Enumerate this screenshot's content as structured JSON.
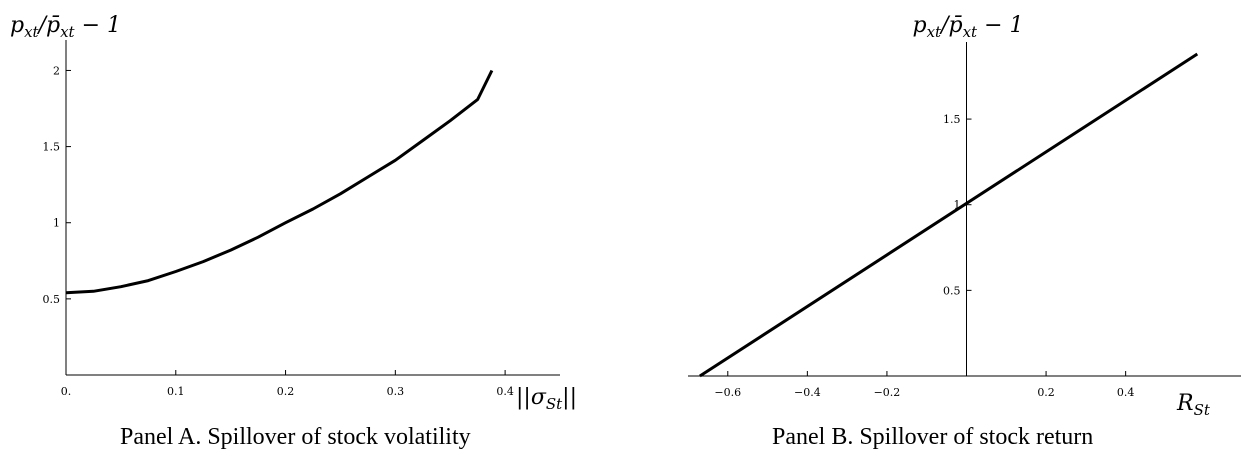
{
  "chart_data": [
    {
      "type": "line",
      "caption": "Panel A. Spillover of stock volatility",
      "xlabel": "||σ_St||",
      "ylabel": "p_xt/p̄_xt − 1",
      "xlim": [
        0,
        0.45
      ],
      "ylim": [
        0,
        2.2
      ],
      "x_ticks": [
        {
          "value": 0,
          "label": "0."
        },
        {
          "value": 0.1,
          "label": "0.1"
        },
        {
          "value": 0.2,
          "label": "0.2"
        },
        {
          "value": 0.3,
          "label": "0.3"
        },
        {
          "value": 0.4,
          "label": "0.4"
        }
      ],
      "y_ticks": [
        {
          "value": 0.5,
          "label": "0.5"
        },
        {
          "value": 1,
          "label": "1"
        },
        {
          "value": 1.5,
          "label": "1.5"
        },
        {
          "value": 2,
          "label": "2"
        }
      ],
      "grid": false,
      "series": [
        {
          "color": "#000000",
          "x": [
            0,
            0.025,
            0.05,
            0.075,
            0.1,
            0.125,
            0.15,
            0.175,
            0.2,
            0.225,
            0.25,
            0.275,
            0.3,
            0.325,
            0.35,
            0.375,
            0.388
          ],
          "y": [
            0.54,
            0.55,
            0.58,
            0.62,
            0.68,
            0.745,
            0.82,
            0.905,
            1.0,
            1.09,
            1.19,
            1.3,
            1.41,
            1.54,
            1.67,
            1.81,
            2.0
          ]
        }
      ]
    },
    {
      "type": "line",
      "caption": "Panel B. Spillover of stock return",
      "xlabel": "R_St",
      "ylabel": "p_xt/p̄_xt − 1",
      "xlim": [
        -0.7,
        0.7
      ],
      "ylim": [
        0,
        1.95
      ],
      "x_ticks": [
        {
          "value": -0.6,
          "label": "−0.6"
        },
        {
          "value": -0.4,
          "label": "−0.4"
        },
        {
          "value": -0.2,
          "label": "−0.2"
        },
        {
          "value": 0.2,
          "label": "0.2"
        },
        {
          "value": 0.4,
          "label": "0.4"
        }
      ],
      "y_ticks": [
        {
          "value": 0.5,
          "label": "0.5"
        },
        {
          "value": 1,
          "label": "1"
        },
        {
          "value": 1.5,
          "label": "1.5"
        }
      ],
      "grid": false,
      "series": [
        {
          "color": "#000000",
          "x": [
            -0.67,
            0.58
          ],
          "y": [
            0.0,
            1.88
          ]
        }
      ]
    }
  ]
}
